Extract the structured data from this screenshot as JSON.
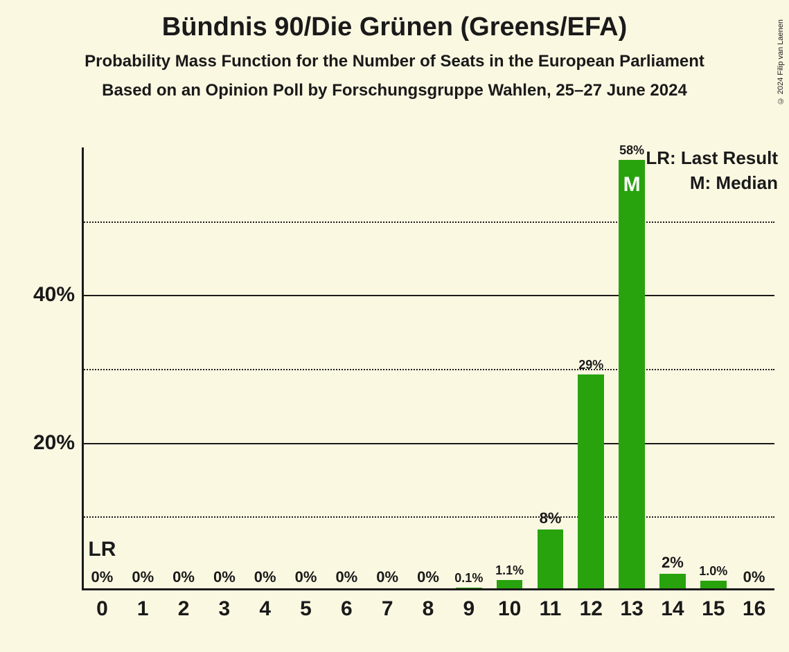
{
  "title": "Bündnis 90/Die Grünen (Greens/EFA)",
  "subtitle": "Probability Mass Function for the Number of Seats in the European Parliament",
  "subtitle2": "Based on an Opinion Poll by Forschungsgruppe Wahlen, 25–27 June 2024",
  "copyright": "© 2024 Filip van Laenen",
  "chart": {
    "type": "bar",
    "background_color": "#fbf8e2",
    "bar_color": "#28a30d",
    "axis_color": "#1a1a1a",
    "text_color": "#1a1a1a",
    "median_text_color": "#ffffff",
    "title_fontsize": 38,
    "subtitle_fontsize": 24,
    "axis_label_fontsize": 30,
    "bar_label_fontsize_large": 22,
    "bar_label_fontsize_small": 18,
    "legend_fontsize": 26,
    "categories": [
      "0",
      "1",
      "2",
      "3",
      "4",
      "5",
      "6",
      "7",
      "8",
      "9",
      "10",
      "11",
      "12",
      "13",
      "14",
      "15",
      "16"
    ],
    "values": [
      0,
      0,
      0,
      0,
      0,
      0,
      0,
      0,
      0,
      0.1,
      1.1,
      8,
      29,
      58,
      2,
      1.0,
      0
    ],
    "value_labels": [
      "0%",
      "0%",
      "0%",
      "0%",
      "0%",
      "0%",
      "0%",
      "0%",
      "0%",
      "0.1%",
      "1.1%",
      "8%",
      "29%",
      "58%",
      "2%",
      "1.0%",
      "0%"
    ],
    "ylim_max": 60,
    "y_ticks_major": [
      20,
      40
    ],
    "y_ticks_minor": [
      10,
      30,
      50
    ],
    "y_tick_labels": {
      "20": "20%",
      "40": "40%"
    },
    "bar_width_ratio": 0.64,
    "lr_index": 0,
    "median_index": 13,
    "legend_lr": "LR: Last Result",
    "legend_m": "M: Median",
    "lr_text": "LR",
    "m_text": "M"
  }
}
